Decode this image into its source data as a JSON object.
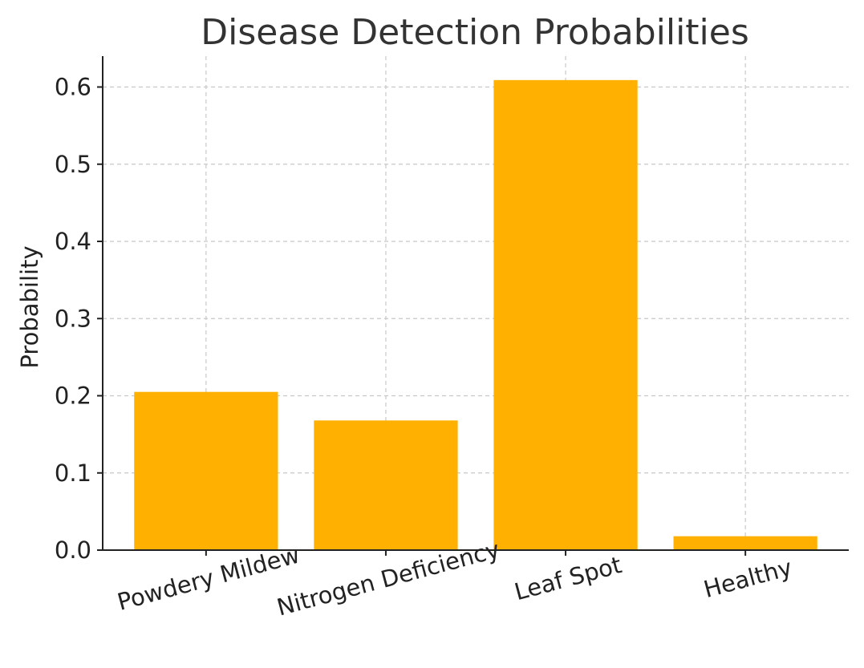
{
  "chart_data": {
    "type": "bar",
    "title": "Disease Detection Probabilities",
    "xlabel": "",
    "ylabel": "Probability",
    "categories": [
      "Powdery Mildew",
      "Nitrogen Deficiency",
      "Leaf Spot",
      "Healthy"
    ],
    "values": [
      0.205,
      0.168,
      0.609,
      0.018
    ],
    "ylim": [
      0,
      0.64
    ],
    "yticks": [
      "0.0",
      "0.1",
      "0.2",
      "0.3",
      "0.4",
      "0.5",
      "0.6"
    ],
    "grid": true,
    "x_tick_rotation_deg": 15,
    "colors": {
      "bar": "#FFB000"
    }
  }
}
